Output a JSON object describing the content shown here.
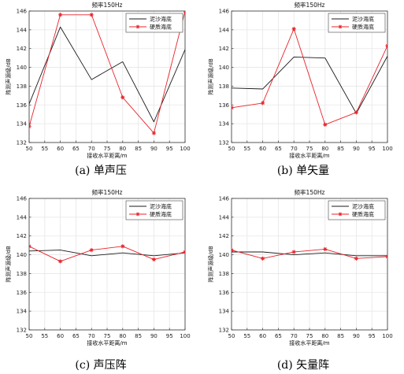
{
  "colors": {
    "black_series": "#1a1a1a",
    "red_series": "#e8232a",
    "grid": "#e6e6e6",
    "axis": "#333333"
  },
  "chart_data": [
    {
      "type": "line",
      "title": "频率150Hz",
      "xlabel": "接收水平距离/m",
      "ylabel": "阵测声源级/dB",
      "caption": "(a)  单声压",
      "xlim": [
        50,
        100
      ],
      "ylim": [
        132,
        146
      ],
      "xticks": [
        50,
        55,
        60,
        65,
        70,
        75,
        80,
        85,
        90,
        95,
        100
      ],
      "yticks": [
        132,
        134,
        136,
        138,
        140,
        142,
        144,
        146
      ],
      "grid": true,
      "legend_position": "top-right",
      "x": [
        50,
        60,
        70,
        80,
        90,
        100
      ],
      "series": [
        {
          "name": "泥沙海底",
          "marker": "none",
          "values": [
            136.1,
            144.3,
            138.7,
            140.6,
            134.2,
            141.9
          ]
        },
        {
          "name": "硬质海底",
          "marker": "star",
          "values": [
            133.7,
            145.6,
            145.6,
            136.8,
            133.0,
            146.0
          ]
        }
      ]
    },
    {
      "type": "line",
      "title": "频率150Hz",
      "xlabel": "接收水平距离/m",
      "ylabel": "阵测声源级/dB",
      "caption": "(b)  单矢量",
      "xlim": [
        50,
        100
      ],
      "ylim": [
        132,
        146
      ],
      "xticks": [
        50,
        55,
        60,
        65,
        70,
        75,
        80,
        85,
        90,
        95,
        100
      ],
      "yticks": [
        132,
        134,
        136,
        138,
        140,
        142,
        144,
        146
      ],
      "grid": true,
      "legend_position": "top-right",
      "x": [
        50,
        60,
        70,
        80,
        90,
        100
      ],
      "series": [
        {
          "name": "泥沙海底",
          "marker": "none",
          "values": [
            137.8,
            137.7,
            141.1,
            141.0,
            135.1,
            141.2
          ]
        },
        {
          "name": "硬质海底",
          "marker": "star",
          "values": [
            135.7,
            136.2,
            144.1,
            133.9,
            135.2,
            142.3
          ]
        }
      ]
    },
    {
      "type": "line",
      "title": "频率150Hz",
      "xlabel": "接收水平距离/m",
      "ylabel": "阵测声源级/dB",
      "caption": "(c)  声压阵",
      "xlim": [
        50,
        100
      ],
      "ylim": [
        132,
        146
      ],
      "xticks": [
        50,
        55,
        60,
        65,
        70,
        75,
        80,
        85,
        90,
        95,
        100
      ],
      "yticks": [
        132,
        134,
        136,
        138,
        140,
        142,
        144,
        146
      ],
      "grid": true,
      "legend_position": "top-right",
      "x": [
        50,
        60,
        70,
        80,
        90,
        100
      ],
      "series": [
        {
          "name": "泥沙海底",
          "marker": "none",
          "values": [
            140.4,
            140.5,
            139.9,
            140.2,
            139.9,
            140.2
          ]
        },
        {
          "name": "硬质海底",
          "marker": "star",
          "values": [
            140.9,
            139.3,
            140.5,
            140.9,
            139.5,
            140.3
          ]
        }
      ]
    },
    {
      "type": "line",
      "title": "频率150Hz",
      "xlabel": "接收水平距离/m",
      "ylabel": "阵测声源级/dB",
      "caption": "(d)  矢量阵",
      "xlim": [
        50,
        100
      ],
      "ylim": [
        132,
        146
      ],
      "xticks": [
        50,
        55,
        60,
        65,
        70,
        75,
        80,
        85,
        90,
        95,
        100
      ],
      "yticks": [
        132,
        134,
        136,
        138,
        140,
        142,
        144,
        146
      ],
      "grid": true,
      "legend_position": "top-right",
      "x": [
        50,
        60,
        70,
        80,
        90,
        100
      ],
      "series": [
        {
          "name": "泥沙海底",
          "marker": "none",
          "values": [
            140.3,
            140.3,
            140.0,
            140.2,
            139.9,
            139.9
          ]
        },
        {
          "name": "硬质海底",
          "marker": "star",
          "values": [
            140.5,
            139.6,
            140.3,
            140.6,
            139.6,
            139.8
          ]
        }
      ]
    }
  ]
}
